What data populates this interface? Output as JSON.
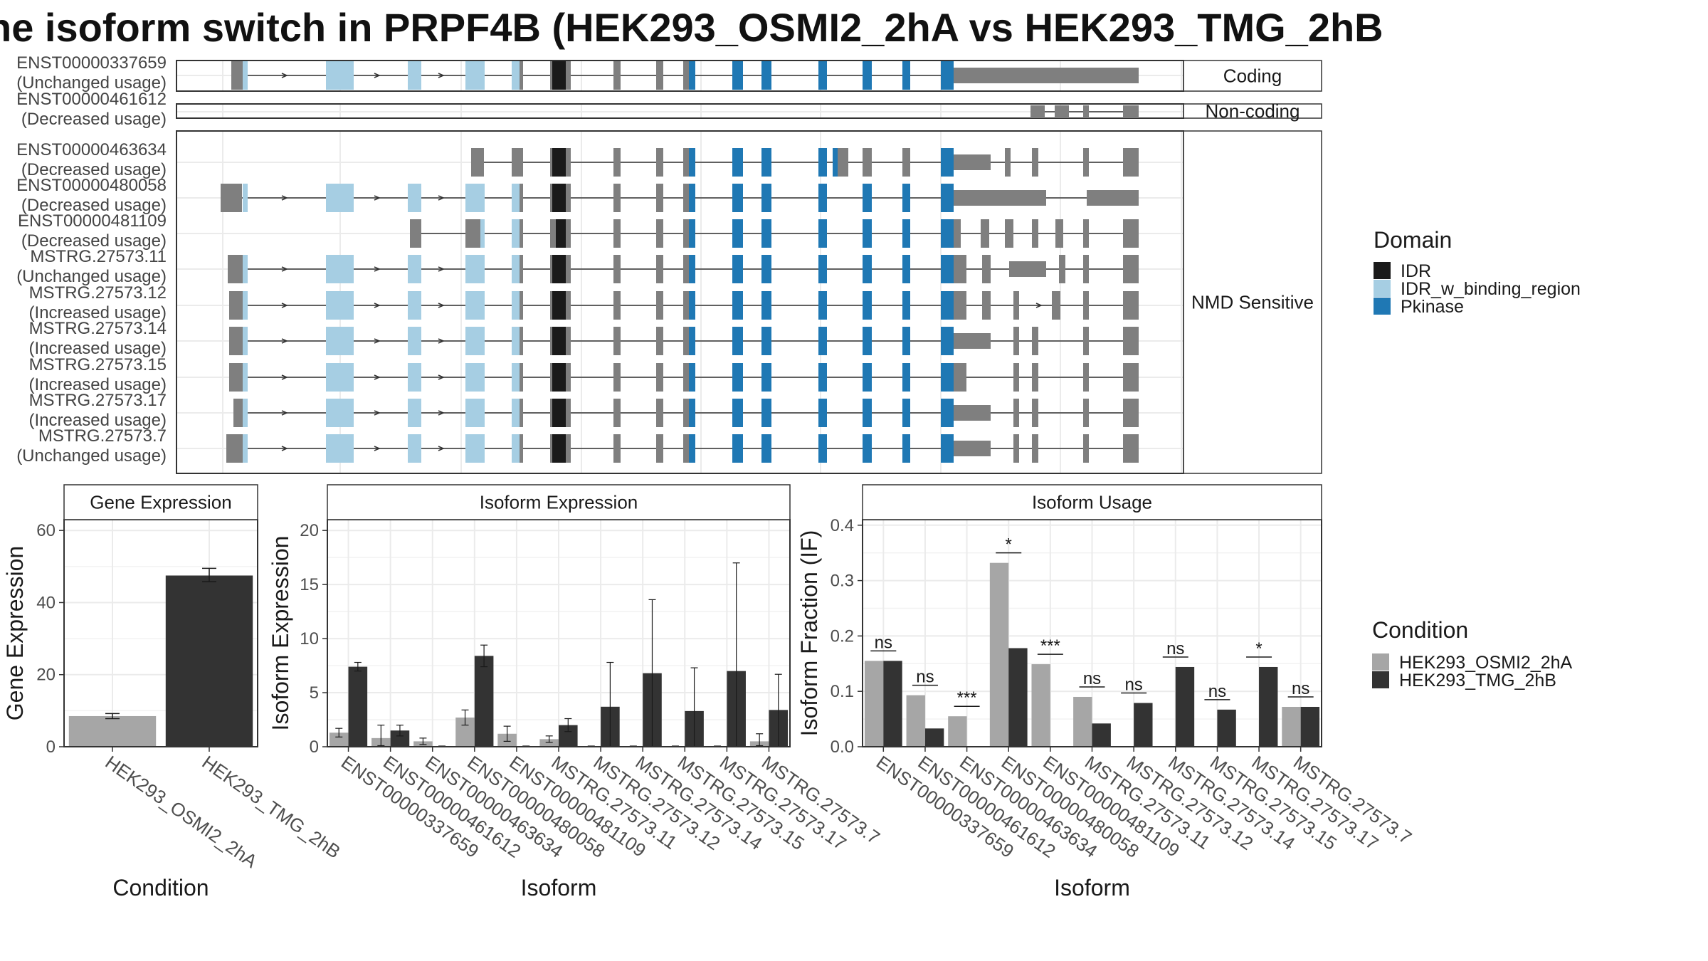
{
  "title": "he isoform switch in PRPF4B (HEK293_OSMI2_2hA vs HEK293_TMG_2hB",
  "colors": {
    "IDR": "#1a1a1a",
    "IDR_w_binding_region": "#a6cee3",
    "Pkinase": "#1f78b4",
    "noncoding_exon": "#7f7f7f",
    "cond1": "#a6a6a6",
    "cond2": "#333333"
  },
  "structure": {
    "facets": [
      {
        "id": "coding",
        "label": "Coding"
      },
      {
        "id": "noncoding",
        "label": "Non-coding"
      },
      {
        "id": "nmd",
        "label": "NMD Sensitive"
      }
    ],
    "transcripts": [
      {
        "id": "ENST00000337659",
        "usage": "(Unchanged usage)",
        "facet": "coding"
      },
      {
        "id": "ENST00000461612",
        "usage": "(Decreased usage)",
        "facet": "noncoding"
      },
      {
        "id": "ENST00000463634",
        "usage": "(Decreased usage)",
        "facet": "nmd"
      },
      {
        "id": "ENST00000480058",
        "usage": "(Decreased usage)",
        "facet": "nmd"
      },
      {
        "id": "ENST00000481109",
        "usage": "(Decreased usage)",
        "facet": "nmd"
      },
      {
        "id": "MSTRG.27573.11",
        "usage": "(Unchanged usage)",
        "facet": "nmd"
      },
      {
        "id": "MSTRG.27573.12",
        "usage": "(Increased usage)",
        "facet": "nmd"
      },
      {
        "id": "MSTRG.27573.14",
        "usage": "(Increased usage)",
        "facet": "nmd"
      },
      {
        "id": "MSTRG.27573.15",
        "usage": "(Increased usage)",
        "facet": "nmd"
      },
      {
        "id": "MSTRG.27573.17",
        "usage": "(Increased usage)",
        "facet": "nmd"
      },
      {
        "id": "MSTRG.27573.7",
        "usage": "(Unchanged usage)",
        "facet": "nmd"
      }
    ]
  },
  "legend": {
    "domain_title": "Domain",
    "domains": [
      "IDR",
      "IDR_w_binding_region",
      "Pkinase"
    ],
    "condition_title": "Condition",
    "conditions": [
      "HEK293_OSMI2_2hA",
      "HEK293_TMG_2hB"
    ]
  },
  "chart_data": [
    {
      "type": "bar",
      "title": "Gene Expression",
      "xlabel": "Condition",
      "ylabel": "Gene Expression",
      "ylim": [
        0,
        63
      ],
      "yticks": [
        0,
        20,
        40,
        60
      ],
      "categories": [
        "HEK293_OSMI2_2hA",
        "HEK293_TMG_2hB"
      ],
      "values": [
        8.5,
        47.5
      ],
      "errors": [
        [
          7.8,
          9.2
        ],
        [
          45.8,
          49.5
        ]
      ]
    },
    {
      "type": "bar",
      "title": "Isoform Expression",
      "xlabel": "Isoform",
      "ylabel": "Isoform Expression",
      "ylim": [
        0,
        21
      ],
      "yticks": [
        0,
        5,
        10,
        15,
        20
      ],
      "categories": [
        "ENST00000337659",
        "ENST00000461612",
        "ENST00000463634",
        "ENST00000480058",
        "ENST00000481109",
        "MSTRG.27573.11",
        "MSTRG.27573.12",
        "MSTRG.27573.14",
        "MSTRG.27573.15",
        "MSTRG.27573.17",
        "MSTRG.27573.7"
      ],
      "series": [
        {
          "name": "HEK293_OSMI2_2hA",
          "values": [
            1.3,
            0.8,
            0.5,
            2.7,
            1.2,
            0.7,
            0.0,
            0.0,
            0.0,
            0.0,
            0.5
          ],
          "errors": [
            [
              0.9,
              1.7
            ],
            [
              0.1,
              2.0
            ],
            [
              0.2,
              0.8
            ],
            [
              2.0,
              3.4
            ],
            [
              0.5,
              1.9
            ],
            [
              0.4,
              1.0
            ],
            [
              0,
              0
            ],
            [
              0,
              0
            ],
            [
              0,
              0
            ],
            [
              0,
              0
            ],
            [
              0.1,
              1.2
            ]
          ]
        },
        {
          "name": "HEK293_TMG_2hB",
          "values": [
            7.4,
            1.5,
            0.0,
            8.4,
            0.0,
            2.0,
            3.7,
            6.8,
            3.3,
            7.0,
            3.4
          ],
          "errors": [
            [
              7.0,
              7.8
            ],
            [
              1.0,
              2.0
            ],
            [
              0,
              0
            ],
            [
              7.4,
              9.4
            ],
            [
              0,
              0
            ],
            [
              1.4,
              2.6
            ],
            [
              0.0,
              7.8
            ],
            [
              0.0,
              13.6
            ],
            [
              0.0,
              7.3
            ],
            [
              0.0,
              17.0
            ],
            [
              0.0,
              6.7
            ]
          ]
        }
      ]
    },
    {
      "type": "bar",
      "title": "Isoform Usage",
      "xlabel": "Isoform",
      "ylabel": "Isoform Fraction (IF)",
      "ylim": [
        0,
        0.41
      ],
      "yticks": [
        0.0,
        0.1,
        0.2,
        0.3,
        0.4
      ],
      "ytick_labels": [
        "0.0",
        "0.1",
        "0.2",
        "0.3",
        "0.4"
      ],
      "categories": [
        "ENST00000337659",
        "ENST00000461612",
        "ENST00000463634",
        "ENST00000480058",
        "ENST00000481109",
        "MSTRG.27573.11",
        "MSTRG.27573.12",
        "MSTRG.27573.14",
        "MSTRG.27573.15",
        "MSTRG.27573.17",
        "MSTRG.27573.7"
      ],
      "series": [
        {
          "name": "HEK293_OSMI2_2hA",
          "values": [
            0.155,
            0.093,
            0.055,
            0.332,
            0.149,
            0.09,
            0.001,
            0.0,
            0.0,
            0.0,
            0.072
          ]
        },
        {
          "name": "HEK293_TMG_2hB",
          "values": [
            0.155,
            0.033,
            0.0,
            0.178,
            0.0,
            0.042,
            0.079,
            0.144,
            0.067,
            0.144,
            0.072
          ]
        }
      ],
      "significance": [
        "ns",
        "ns",
        "***",
        "*",
        "***",
        "ns",
        "ns",
        "ns",
        "ns",
        "*",
        "ns"
      ],
      "sig_y": [
        0.173,
        0.111,
        0.073,
        0.35,
        0.167,
        0.108,
        0.097,
        0.162,
        0.085,
        0.162,
        0.09
      ]
    }
  ]
}
